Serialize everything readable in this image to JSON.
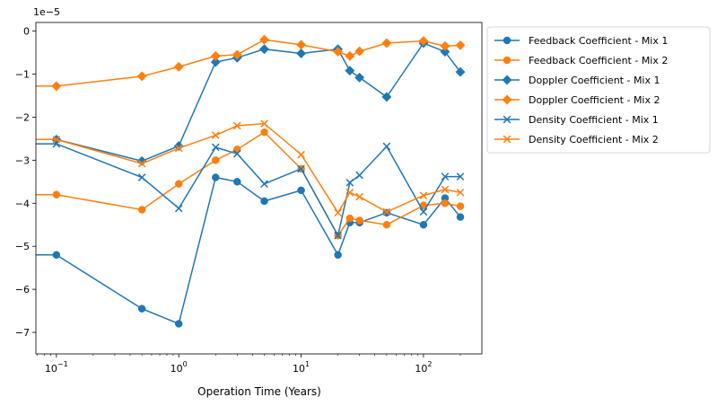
{
  "chart_data": {
    "type": "line",
    "xlabel": "Operation Time (Years)",
    "ylabel": "",
    "x_scale": "log",
    "xlim": [
      0.068,
      300
    ],
    "ylim": [
      -7.5e-05,
      2e-06
    ],
    "x_ticks": [
      0.1,
      1,
      10,
      100
    ],
    "x_tick_labels": [
      {
        "base": "10",
        "exp": "−1"
      },
      {
        "base": "10",
        "exp": "0"
      },
      {
        "base": "10",
        "exp": "1"
      },
      {
        "base": "10",
        "exp": "2"
      }
    ],
    "y_ticks": [
      0,
      -1e-05,
      -2e-05,
      -3e-05,
      -4e-05,
      -5e-05,
      -6e-05,
      -7e-05
    ],
    "y_tick_labels": [
      "0",
      "−1",
      "−2",
      "−3",
      "−4",
      "−5",
      "−6",
      "−7"
    ],
    "y_offset_label": {
      "base": "1e",
      "exp": "−5"
    },
    "grid": false,
    "legend_position": "outside-upper-right",
    "x": [
      0.1,
      0.5,
      1,
      2,
      3,
      5,
      10,
      20,
      25,
      30,
      50,
      100,
      150,
      200
    ],
    "series": [
      {
        "name": "Feedback Coefficient - Mix 1",
        "color": "#1f77b4",
        "marker": "circle",
        "values": [
          -5.2e-05,
          -6.45e-05,
          -6.8e-05,
          -3.4e-05,
          -3.5e-05,
          -3.95e-05,
          -3.7e-05,
          -5.2e-05,
          -4.45e-05,
          -4.45e-05,
          -4.22e-05,
          -4.5e-05,
          -3.88e-05,
          -4.32e-05
        ]
      },
      {
        "name": "Feedback Coefficient - Mix 2",
        "color": "#ff7f0e",
        "marker": "circle",
        "values": [
          -3.8e-05,
          -4.15e-05,
          -3.55e-05,
          -3e-05,
          -2.75e-05,
          -2.35e-05,
          -3.2e-05,
          -4.75e-05,
          -4.35e-05,
          -4.4e-05,
          -4.5e-05,
          -4.05e-05,
          -4e-05,
          -4.07e-05
        ]
      },
      {
        "name": "Doppler Coefficient - Mix 1",
        "color": "#1f77b4",
        "marker": "diamond",
        "values": [
          -2.52e-05,
          -3.02e-05,
          -2.67e-05,
          -7.2e-06,
          -6.2e-06,
          -4.2e-06,
          -5.2e-06,
          -4.2e-06,
          -9.2e-06,
          -1.08e-05,
          -1.53e-05,
          -2.8e-06,
          -4.8e-06,
          -9.5e-06
        ]
      },
      {
        "name": "Doppler Coefficient - Mix 2",
        "color": "#ff7f0e",
        "marker": "diamond",
        "values": [
          -1.28e-05,
          -1.05e-05,
          -8.3e-06,
          -5.8e-06,
          -5.5e-06,
          -2e-06,
          -3.2e-06,
          -4.8e-06,
          -5.8e-06,
          -4.7e-06,
          -2.8e-06,
          -2.3e-06,
          -3.5e-06,
          -3.3e-06
        ]
      },
      {
        "name": "Density Coefficient - Mix 1",
        "color": "#1f77b4",
        "marker": "x",
        "values": [
          -2.62e-05,
          -3.4e-05,
          -4.12e-05,
          -2.7e-05,
          -2.85e-05,
          -3.55e-05,
          -3.2e-05,
          -4.75e-05,
          -3.52e-05,
          -3.35e-05,
          -2.68e-05,
          -4.2e-05,
          -3.38e-05,
          -3.38e-05
        ]
      },
      {
        "name": "Density Coefficient - Mix 2",
        "color": "#ff7f0e",
        "marker": "x",
        "values": [
          -2.52e-05,
          -3.08e-05,
          -2.72e-05,
          -2.42e-05,
          -2.2e-05,
          -2.15e-05,
          -2.87e-05,
          -4.22e-05,
          -3.75e-05,
          -3.85e-05,
          -4.2e-05,
          -3.82e-05,
          -3.68e-05,
          -3.75e-05
        ]
      }
    ]
  }
}
